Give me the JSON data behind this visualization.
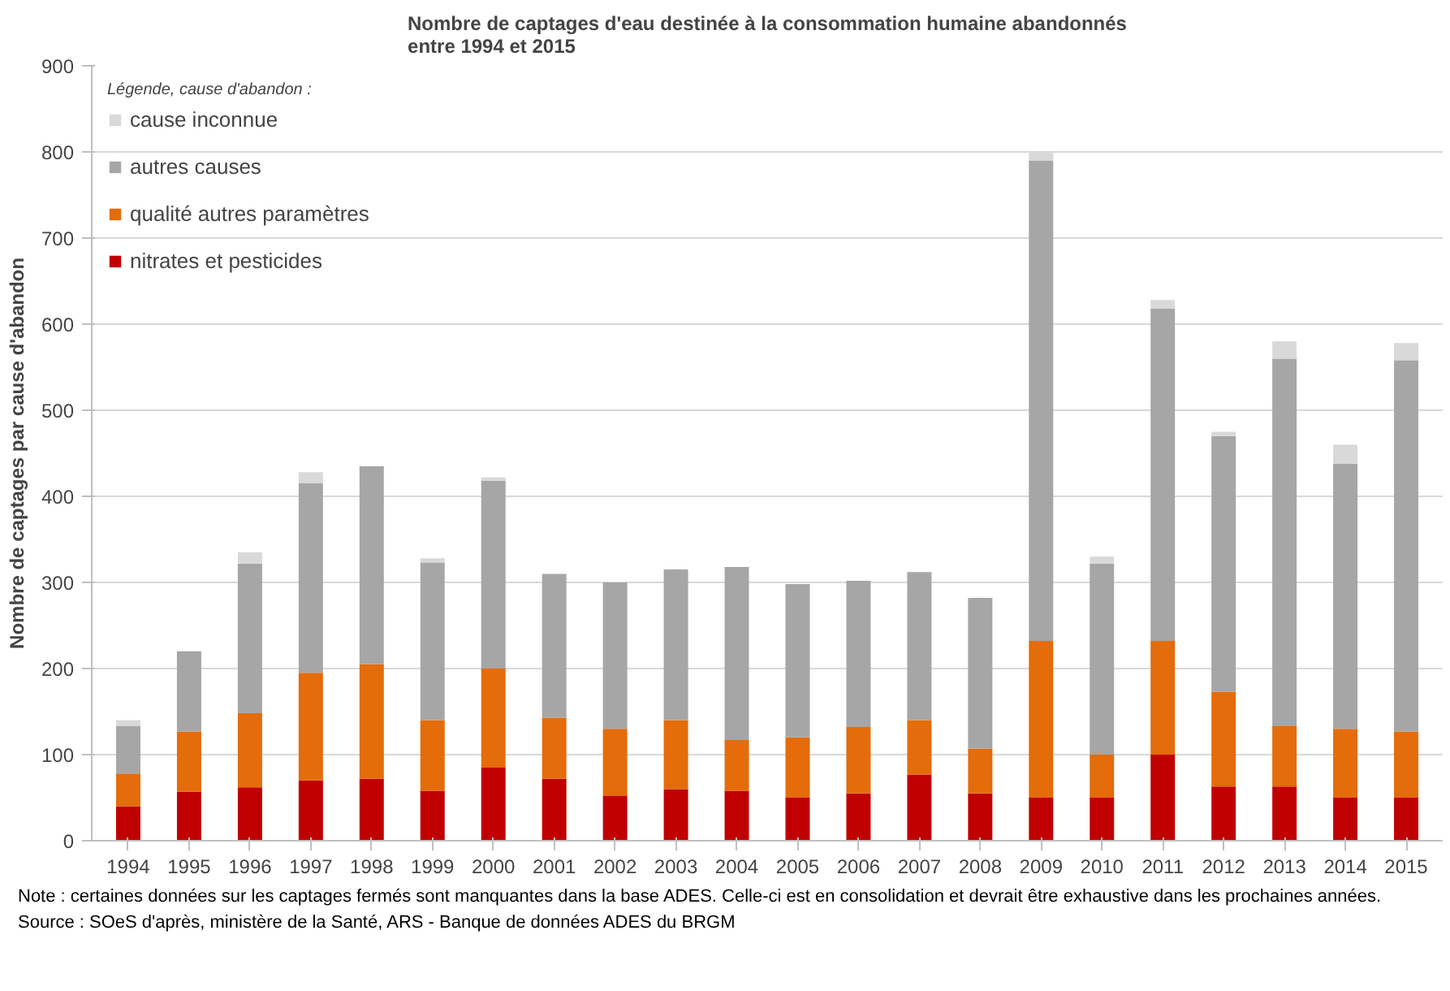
{
  "chart_data": {
    "type": "bar",
    "stacked": true,
    "title": "Nombre de captages d'eau destinée à la consommation humaine abandonnés\nentre 1994 et 2015",
    "ylabel": "Nombre de captages par cause d'abandon",
    "legend_title": "Légende, cause d'abandon :",
    "categories": [
      "1994",
      "1995",
      "1996",
      "1997",
      "1998",
      "1999",
      "2000",
      "2001",
      "2002",
      "2003",
      "2004",
      "2005",
      "2006",
      "2007",
      "2008",
      "2009",
      "2010",
      "2011",
      "2012",
      "2013",
      "2014",
      "2015"
    ],
    "series": [
      {
        "name": "nitrates et pesticides",
        "color": "#c00000",
        "values": [
          40,
          57,
          62,
          70,
          72,
          58,
          85,
          72,
          52,
          60,
          58,
          50,
          55,
          77,
          55,
          50,
          50,
          100,
          63,
          63,
          50,
          50
        ]
      },
      {
        "name": "qualité autres paramètres",
        "color": "#e46c0a",
        "values": [
          38,
          70,
          86,
          125,
          133,
          82,
          115,
          71,
          78,
          80,
          59,
          70,
          77,
          63,
          52,
          182,
          50,
          132,
          110,
          70,
          80,
          77
        ]
      },
      {
        "name": "autres causes",
        "color": "#a6a6a6",
        "values": [
          55,
          93,
          174,
          220,
          230,
          183,
          218,
          167,
          170,
          175,
          201,
          178,
          170,
          172,
          175,
          558,
          222,
          386,
          297,
          427,
          308,
          431
        ]
      },
      {
        "name": "cause inconnue",
        "color": "#d9d9d9",
        "values": [
          7,
          null,
          13,
          13,
          0,
          5,
          4,
          null,
          0,
          0,
          0,
          0,
          0,
          null,
          0,
          10,
          8,
          10,
          5,
          20,
          22,
          20
        ]
      }
    ],
    "ylim": [
      0,
      900
    ],
    "yticks": [
      0,
      100,
      200,
      300,
      400,
      500,
      600,
      700,
      800,
      900
    ],
    "grid": "y",
    "legend": "top left",
    "annotations": [
      "Note : certaines données sur les captages fermés sont manquantes dans la base ADES. Celle-ci est en consolidation et devrait être exhaustive dans les prochaines années.",
      "Source : SOeS d'après, ministère de la Santé, ARS - Banque de données ADES du BRGM"
    ]
  }
}
